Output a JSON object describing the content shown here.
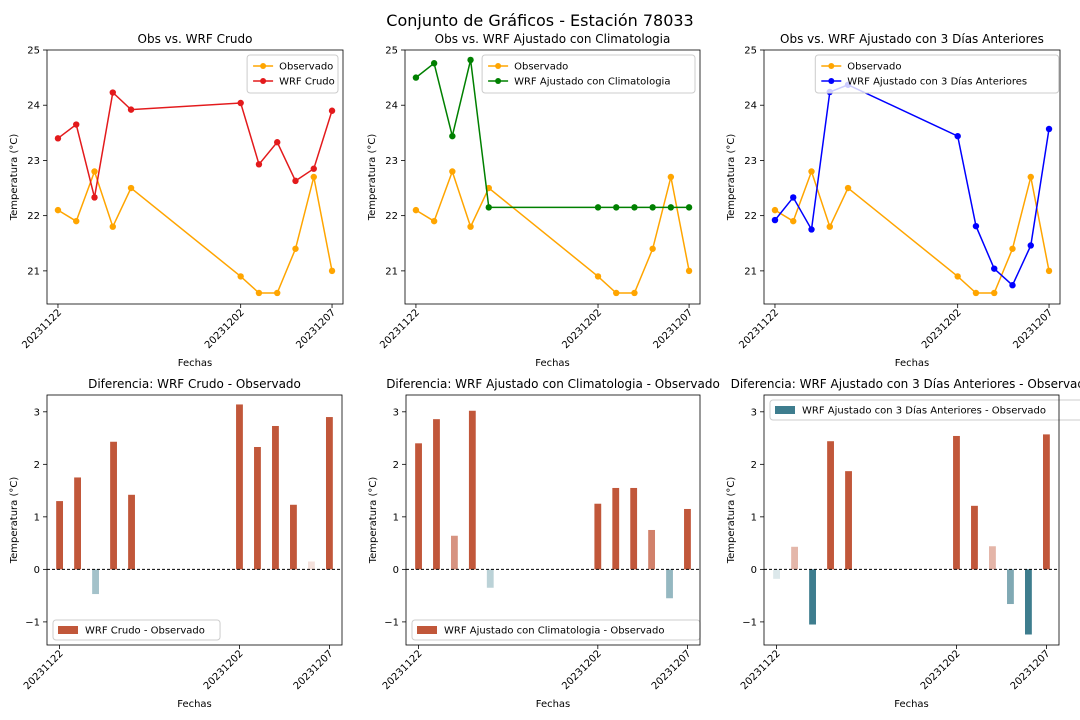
{
  "suptitle": "Conjunto de Gráficos - Estación 78033",
  "colors": {
    "observed": "#FFA500",
    "wrf_raw": "#E31A1C",
    "wrf_clim": "#008000",
    "wrf_3d": "#0000FF",
    "diff_pos_strong": "#C1573A",
    "diff_neg_strong": "#3E7D8E"
  },
  "chart_data": [
    {
      "type": "line",
      "title": "Obs vs. WRF Crudo",
      "xlabel": "Fechas",
      "ylabel": "Temperatura (°C)",
      "x": [
        "20231122",
        "20231123",
        "20231124",
        "20231125",
        "20231126",
        "20231127",
        "20231128",
        "20231129",
        "20231130",
        "20231201",
        "20231202",
        "20231203",
        "20231204",
        "20231205",
        "20231206",
        "20231207"
      ],
      "x_ticks": [
        "20231122",
        "20231202",
        "20231207"
      ],
      "ylim": [
        20.4,
        25.0
      ],
      "y_ticks": [
        21,
        22,
        23,
        24,
        25
      ],
      "legend_position": "upper right",
      "grid": false,
      "series": [
        {
          "name": "Observado",
          "color": "#FFA500",
          "points": [
            [
              "20231122",
              22.1
            ],
            [
              "20231123",
              21.9
            ],
            [
              "20231124",
              22.8
            ],
            [
              "20231125",
              21.8
            ],
            [
              "20231126",
              22.5
            ],
            [
              "20231202",
              20.9
            ],
            [
              "20231203",
              20.6
            ],
            [
              "20231204",
              20.6
            ],
            [
              "20231205",
              21.4
            ],
            [
              "20231206",
              22.7
            ],
            [
              "20231207",
              21.0
            ]
          ]
        },
        {
          "name": "WRF Crudo",
          "color": "#E31A1C",
          "points": [
            [
              "20231122",
              23.4
            ],
            [
              "20231123",
              23.65
            ],
            [
              "20231124",
              22.33
            ],
            [
              "20231125",
              24.23
            ],
            [
              "20231126",
              23.92
            ],
            [
              "20231202",
              24.04
            ],
            [
              "20231203",
              22.93
            ],
            [
              "20231204",
              23.33
            ],
            [
              "20231205",
              22.63
            ],
            [
              "20231206",
              22.85
            ],
            [
              "20231207",
              23.9
            ]
          ]
        }
      ]
    },
    {
      "type": "line",
      "title": "Obs vs. WRF Ajustado con Climatologia",
      "xlabel": "Fechas",
      "ylabel": "Temperatura (°C)",
      "x": [
        "20231122",
        "20231123",
        "20231124",
        "20231125",
        "20231126",
        "20231127",
        "20231128",
        "20231129",
        "20231130",
        "20231201",
        "20231202",
        "20231203",
        "20231204",
        "20231205",
        "20231206",
        "20231207"
      ],
      "x_ticks": [
        "20231122",
        "20231202",
        "20231207"
      ],
      "ylim": [
        20.4,
        25.0
      ],
      "y_ticks": [
        21,
        22,
        23,
        24,
        25
      ],
      "legend_position": "upper right",
      "grid": false,
      "series": [
        {
          "name": "Observado",
          "color": "#FFA500",
          "points": [
            [
              "20231122",
              22.1
            ],
            [
              "20231123",
              21.9
            ],
            [
              "20231124",
              22.8
            ],
            [
              "20231125",
              21.8
            ],
            [
              "20231126",
              22.5
            ],
            [
              "20231202",
              20.9
            ],
            [
              "20231203",
              20.6
            ],
            [
              "20231204",
              20.6
            ],
            [
              "20231205",
              21.4
            ],
            [
              "20231206",
              22.7
            ],
            [
              "20231207",
              21.0
            ]
          ]
        },
        {
          "name": "WRF Ajustado con Climatologia",
          "color": "#008000",
          "points": [
            [
              "20231122",
              24.5
            ],
            [
              "20231123",
              24.76
            ],
            [
              "20231124",
              23.44
            ],
            [
              "20231125",
              24.82
            ],
            [
              "20231126",
              22.15
            ],
            [
              "20231202",
              22.15
            ],
            [
              "20231203",
              22.15
            ],
            [
              "20231204",
              22.15
            ],
            [
              "20231205",
              22.15
            ],
            [
              "20231206",
              22.15
            ],
            [
              "20231207",
              22.15
            ]
          ]
        }
      ]
    },
    {
      "type": "line",
      "title": "Obs vs. WRF Ajustado con 3 Días Anteriores",
      "xlabel": "Fechas",
      "ylabel": "Temperatura (°C)",
      "x": [
        "20231122",
        "20231123",
        "20231124",
        "20231125",
        "20231126",
        "20231127",
        "20231128",
        "20231129",
        "20231130",
        "20231201",
        "20231202",
        "20231203",
        "20231204",
        "20231205",
        "20231206",
        "20231207"
      ],
      "x_ticks": [
        "20231122",
        "20231202",
        "20231207"
      ],
      "ylim": [
        20.4,
        25.0
      ],
      "y_ticks": [
        21,
        22,
        23,
        24,
        25
      ],
      "legend_position": "upper center",
      "grid": false,
      "series": [
        {
          "name": "Observado",
          "color": "#FFA500",
          "points": [
            [
              "20231122",
              22.1
            ],
            [
              "20231123",
              21.9
            ],
            [
              "20231124",
              22.8
            ],
            [
              "20231125",
              21.8
            ],
            [
              "20231126",
              22.5
            ],
            [
              "20231202",
              20.9
            ],
            [
              "20231203",
              20.6
            ],
            [
              "20231204",
              20.6
            ],
            [
              "20231205",
              21.4
            ],
            [
              "20231206",
              22.7
            ],
            [
              "20231207",
              21.0
            ]
          ]
        },
        {
          "name": "WRF Ajustado con 3 Días Anteriores",
          "color": "#0000FF",
          "points": [
            [
              "20231122",
              21.92
            ],
            [
              "20231123",
              22.33
            ],
            [
              "20231124",
              21.75
            ],
            [
              "20231125",
              24.24
            ],
            [
              "20231126",
              24.37
            ],
            [
              "20231202",
              23.44
            ],
            [
              "20231203",
              21.81
            ],
            [
              "20231204",
              21.04
            ],
            [
              "20231205",
              20.74
            ],
            [
              "20231206",
              21.46
            ],
            [
              "20231207",
              23.57
            ]
          ]
        }
      ]
    },
    {
      "type": "bar",
      "title": "Diferencia: WRF Crudo - Observado",
      "xlabel": "Fechas",
      "ylabel": "Temperatura (°C)",
      "x": [
        "20231122",
        "20231123",
        "20231124",
        "20231125",
        "20231126",
        "20231127",
        "20231128",
        "20231129",
        "20231130",
        "20231201",
        "20231202",
        "20231203",
        "20231204",
        "20231205",
        "20231206",
        "20231207"
      ],
      "x_ticks": [
        "20231122",
        "20231202",
        "20231207"
      ],
      "ylim": [
        -1.44,
        3.32
      ],
      "y_ticks": [
        -1,
        0,
        1,
        2,
        3
      ],
      "zero_line": true,
      "legend_position": "lower left",
      "legend": "WRF Crudo - Observado",
      "grid": false,
      "bars": [
        [
          "20231122",
          1.3
        ],
        [
          "20231123",
          1.75
        ],
        [
          "20231124",
          -0.47
        ],
        [
          "20231125",
          2.43
        ],
        [
          "20231126",
          1.42
        ],
        [
          "20231202",
          3.14
        ],
        [
          "20231203",
          2.33
        ],
        [
          "20231204",
          2.73
        ],
        [
          "20231205",
          1.23
        ],
        [
          "20231206",
          0.15
        ],
        [
          "20231207",
          2.9
        ]
      ]
    },
    {
      "type": "bar",
      "title": "Diferencia: WRF Ajustado con Climatologia - Observado",
      "xlabel": "Fechas",
      "ylabel": "Temperatura (°C)",
      "x": [
        "20231122",
        "20231123",
        "20231124",
        "20231125",
        "20231126",
        "20231127",
        "20231128",
        "20231129",
        "20231130",
        "20231201",
        "20231202",
        "20231203",
        "20231204",
        "20231205",
        "20231206",
        "20231207"
      ],
      "x_ticks": [
        "20231122",
        "20231202",
        "20231207"
      ],
      "ylim": [
        -1.44,
        3.32
      ],
      "y_ticks": [
        -1,
        0,
        1,
        2,
        3
      ],
      "zero_line": true,
      "legend_position": "lower left",
      "legend": "WRF Ajustado con Climatologia - Observado",
      "grid": false,
      "bars": [
        [
          "20231122",
          2.4
        ],
        [
          "20231123",
          2.86
        ],
        [
          "20231124",
          0.64
        ],
        [
          "20231125",
          3.02
        ],
        [
          "20231126",
          -0.35
        ],
        [
          "20231202",
          1.25
        ],
        [
          "20231203",
          1.55
        ],
        [
          "20231204",
          1.55
        ],
        [
          "20231205",
          0.75
        ],
        [
          "20231206",
          -0.55
        ],
        [
          "20231207",
          1.15
        ]
      ]
    },
    {
      "type": "bar",
      "title": "Diferencia: WRF Ajustado con 3 Días Anteriores - Observado",
      "xlabel": "Fechas",
      "ylabel": "Temperatura (°C)",
      "x": [
        "20231122",
        "20231123",
        "20231124",
        "20231125",
        "20231126",
        "20231127",
        "20231128",
        "20231129",
        "20231130",
        "20231201",
        "20231202",
        "20231203",
        "20231204",
        "20231205",
        "20231206",
        "20231207"
      ],
      "x_ticks": [
        "20231122",
        "20231202",
        "20231207"
      ],
      "ylim": [
        -1.44,
        3.32
      ],
      "y_ticks": [
        -1,
        0,
        1,
        2,
        3
      ],
      "zero_line": true,
      "legend_position": "upper left",
      "legend": "WRF Ajustado con 3 Días Anteriores - Observado",
      "legend_swatch": "negative",
      "grid": false,
      "bars": [
        [
          "20231122",
          -0.18
        ],
        [
          "20231123",
          0.43
        ],
        [
          "20231124",
          -1.05
        ],
        [
          "20231125",
          2.44
        ],
        [
          "20231126",
          1.87
        ],
        [
          "20231202",
          2.54
        ],
        [
          "20231203",
          1.21
        ],
        [
          "20231204",
          0.44
        ],
        [
          "20231205",
          -0.66
        ],
        [
          "20231206",
          -1.24
        ],
        [
          "20231207",
          2.57
        ]
      ]
    }
  ]
}
